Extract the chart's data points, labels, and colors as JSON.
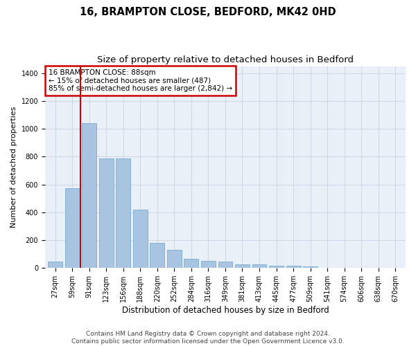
{
  "title_line1": "16, BRAMPTON CLOSE, BEDFORD, MK42 0HD",
  "title_line2": "Size of property relative to detached houses in Bedford",
  "xlabel": "Distribution of detached houses by size in Bedford",
  "ylabel": "Number of detached properties",
  "footer_line1": "Contains HM Land Registry data © Crown copyright and database right 2024.",
  "footer_line2": "Contains public sector information licensed under the Open Government Licence v3.0.",
  "annotation_title": "16 BRAMPTON CLOSE: 88sqm",
  "annotation_line1": "← 15% of detached houses are smaller (487)",
  "annotation_line2": "85% of semi-detached houses are larger (2,842) →",
  "vline_x": 1.5,
  "bar_categories": [
    "27sqm",
    "59sqm",
    "91sqm",
    "123sqm",
    "156sqm",
    "188sqm",
    "220sqm",
    "252sqm",
    "284sqm",
    "316sqm",
    "349sqm",
    "381sqm",
    "413sqm",
    "445sqm",
    "477sqm",
    "509sqm",
    "541sqm",
    "574sqm",
    "606sqm",
    "638sqm",
    "670sqm"
  ],
  "bar_values": [
    45,
    575,
    1040,
    785,
    785,
    420,
    180,
    130,
    65,
    50,
    47,
    27,
    25,
    18,
    15,
    10,
    0,
    0,
    0,
    0,
    0
  ],
  "bar_color": "#a8c4e0",
  "bar_edgecolor": "#7aaed0",
  "vline_color": "#cc0000",
  "ylim": [
    0,
    1450
  ],
  "yticks": [
    0,
    200,
    400,
    600,
    800,
    1000,
    1200,
    1400
  ],
  "grid_color": "#d0d8e8",
  "bg_color": "#eaf0f8",
  "annotation_box_color": "#cc0000",
  "title_fontsize": 10.5,
  "subtitle_fontsize": 9.5,
  "xlabel_fontsize": 8.5,
  "ylabel_fontsize": 8,
  "tick_fontsize": 7,
  "footer_fontsize": 6.5,
  "annotation_fontsize": 7.5
}
